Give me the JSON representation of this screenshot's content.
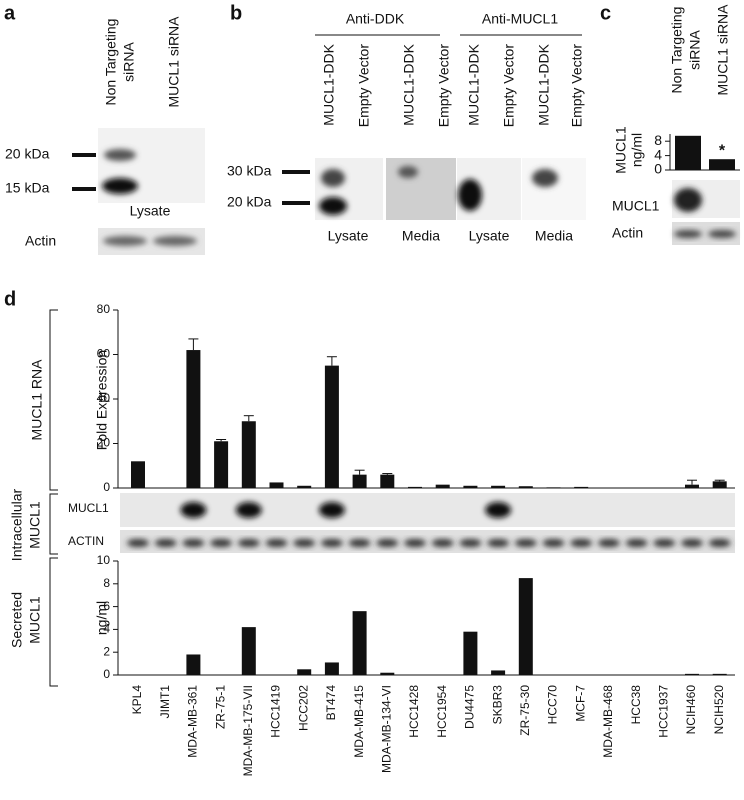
{
  "panel_a": {
    "label": "a",
    "lanes": [
      [
        "Non Targeting",
        "siRNA"
      ],
      [
        "MUCL1 siRNA"
      ]
    ],
    "markers": [
      "20 kDa",
      "15 kDa"
    ],
    "blot_label": "Lysate",
    "loading_label": "Actin"
  },
  "panel_b": {
    "label": "b",
    "groups": [
      "Anti-DDK",
      "Anti-MUCL1"
    ],
    "lanes": [
      "MUCL1-DDK",
      "Empty Vector",
      "MUCL1-DDK",
      "Empty Vector",
      "MUCL1-DDK",
      "Empty Vector",
      "MUCL1-DDK",
      "Empty Vector"
    ],
    "markers": [
      "30 kDa",
      "20 kDa"
    ],
    "fractions": [
      "Lysate",
      "Media",
      "Lysate",
      "Media"
    ]
  },
  "panel_c": {
    "label": "c",
    "lanes": [
      [
        "Non Targeting",
        "siRNA"
      ],
      [
        "MUCL1 siRNA"
      ]
    ],
    "blot_labels": [
      "MUCL1",
      "Actin"
    ]
  },
  "panel_d": {
    "label": "d",
    "row_labels": [
      [
        "MUCL1 RNA"
      ],
      [
        "Intracellular",
        "MUCL1"
      ],
      [
        "Secreted",
        "MUCL1"
      ]
    ],
    "blot_labels": [
      "MUCL1",
      "ACTIN"
    ]
  },
  "chart_data": [
    {
      "type": "bar",
      "y_label": [
        "MUCL1",
        "ng/ml"
      ],
      "values": [
        9.5,
        3
      ],
      "annotation": "*",
      "color": "#111111",
      "ylim": [
        0,
        10
      ],
      "yticks": [
        0,
        4,
        8
      ]
    },
    {
      "type": "bar",
      "y_label": "Fold Expression",
      "values": [
        12,
        0,
        62,
        21,
        30,
        2.5,
        1,
        55,
        6,
        6,
        0.5,
        1.5,
        1,
        1,
        0.8,
        0.3,
        0.5,
        0.1,
        0.1,
        0.1,
        1.5,
        3
      ],
      "errors": [
        null,
        null,
        5,
        0.8,
        2.5,
        null,
        null,
        4,
        2,
        0.5,
        null,
        null,
        null,
        null,
        null,
        null,
        null,
        null,
        null,
        null,
        2,
        0.5
      ],
      "color": "#111111",
      "ylim": [
        0,
        80
      ],
      "yticks": [
        0,
        20,
        40,
        60,
        80
      ]
    },
    {
      "type": "bar",
      "y_label": "ng/ml",
      "categories": [
        "KPL4",
        "JIMT1",
        "MDA-MB-361",
        "ZR-75-1",
        "MDA-MB-175-VII",
        "HCC1419",
        "HCC202",
        "BT474",
        "MDA-MB-415",
        "MDA-MB-134-VI",
        "HCC1428",
        "HCC1954",
        "DU4475",
        "SKBR3",
        "ZR-75-30",
        "HCC70",
        "MCF-7",
        "MDA-MB-468",
        "HCC38",
        "HCC1937",
        "NCIH460",
        "NCIH520"
      ],
      "values": [
        0,
        0,
        1.8,
        0,
        4.2,
        0,
        0.5,
        1.1,
        5.6,
        0.2,
        0,
        0,
        3.8,
        0.4,
        8.5,
        0,
        0,
        0,
        0,
        0,
        0.1,
        0.1
      ],
      "color": "#111111",
      "ylim": [
        0,
        10
      ],
      "yticks": [
        0,
        2,
        4,
        6,
        8,
        10
      ]
    }
  ]
}
